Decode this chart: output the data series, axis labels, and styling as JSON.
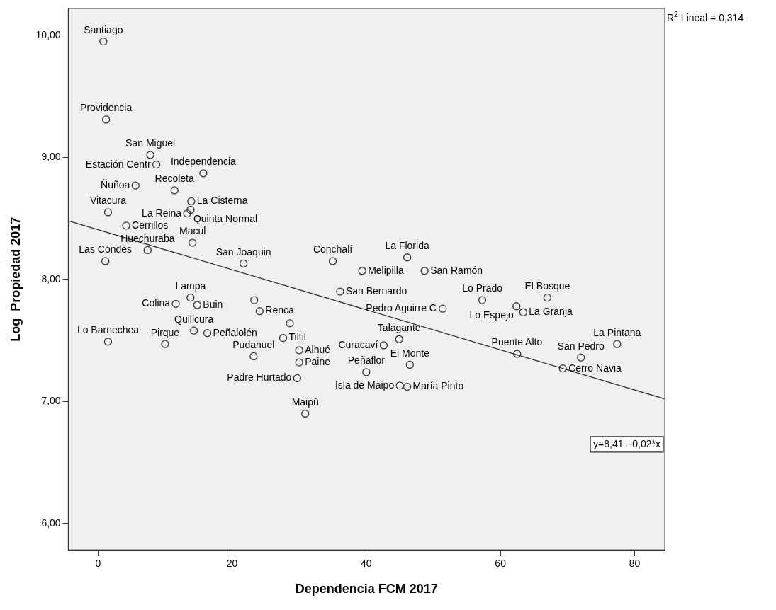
{
  "chart_data": {
    "type": "scatter",
    "xlabel": "Dependencia FCM 2017",
    "ylabel": "Log_Propiedad 2017",
    "xlim": [
      -4.4,
      84.5
    ],
    "ylim": [
      5.78,
      10.22
    ],
    "xticks": [
      0,
      20,
      40,
      60,
      80
    ],
    "yticks": [
      {
        "value": 6,
        "label": "6,00"
      },
      {
        "value": 7,
        "label": "7,00"
      },
      {
        "value": 8,
        "label": "8,00"
      },
      {
        "value": 9,
        "label": "9,00"
      },
      {
        "value": 10,
        "label": "10,00"
      }
    ],
    "grid": false,
    "legend": false,
    "series": [
      {
        "type": "scatter",
        "color": "#333333",
        "marker": "circle",
        "x": [
          0.8,
          1.2,
          7.8,
          8.7,
          5.6,
          11.4,
          15.7,
          13.9,
          13.8,
          13.3,
          1.5,
          4.2,
          14.1,
          7.4,
          1.1,
          21.7,
          35.0,
          39.4,
          36.1,
          46.1,
          48.7,
          57.3,
          51.4,
          44.9,
          42.6,
          30.0,
          30.0,
          29.7,
          30.9,
          40.0,
          46.5,
          45.0,
          46.1,
          67.0,
          62.4,
          63.4,
          77.4,
          62.5,
          72.0,
          69.3,
          11.6,
          13.8,
          14.8,
          1.5,
          10.0,
          14.3,
          16.3,
          23.2,
          24.1,
          27.6,
          23.3,
          28.6
        ],
        "values": [
          9.95,
          9.31,
          9.02,
          8.94,
          8.77,
          8.73,
          8.87,
          8.64,
          8.57,
          8.54,
          8.55,
          8.44,
          8.3,
          8.24,
          8.15,
          8.13,
          8.15,
          8.07,
          7.9,
          8.18,
          8.07,
          7.83,
          7.76,
          7.51,
          7.46,
          7.42,
          7.32,
          7.19,
          6.9,
          7.24,
          7.3,
          7.13,
          7.12,
          7.85,
          7.78,
          7.73,
          7.47,
          7.39,
          7.36,
          7.27,
          7.8,
          7.85,
          7.79,
          7.49,
          7.47,
          7.58,
          7.56,
          7.37,
          7.74,
          7.52,
          7.83,
          7.64
        ]
      },
      {
        "type": "line",
        "color": "#333333",
        "line_style": "solid",
        "x": [
          -4.4,
          84.5
        ],
        "values": [
          8.48,
          7.02
        ]
      }
    ],
    "annotations": [
      {
        "text": "Santiago",
        "x": 0.8,
        "y": 9.95
      },
      {
        "text": "Providencia",
        "x": 1.2,
        "y": 9.31
      },
      {
        "text": "San Miguel",
        "x": 7.8,
        "y": 9.02
      },
      {
        "text": "Estación Centr",
        "x": 8.7,
        "y": 8.94
      },
      {
        "text": "Ñuñoa",
        "x": 5.6,
        "y": 8.77
      },
      {
        "text": "Recoleta",
        "x": 11.4,
        "y": 8.73
      },
      {
        "text": "Independencia",
        "x": 15.7,
        "y": 8.87
      },
      {
        "text": "La Cisterna",
        "x": 13.9,
        "y": 8.64
      },
      {
        "text": "Quinta Normal",
        "x": 13.8,
        "y": 8.57
      },
      {
        "text": "La Reina",
        "x": 13.3,
        "y": 8.54
      },
      {
        "text": "Vitacura",
        "x": 1.5,
        "y": 8.55
      },
      {
        "text": "Cerrillos",
        "x": 4.2,
        "y": 8.44
      },
      {
        "text": "Macul",
        "x": 14.1,
        "y": 8.3
      },
      {
        "text": "Huechuraba",
        "x": 7.4,
        "y": 8.24
      },
      {
        "text": "Las Condes",
        "x": 1.1,
        "y": 8.15
      },
      {
        "text": "San Joaquin",
        "x": 21.7,
        "y": 8.13
      },
      {
        "text": "Conchalí",
        "x": 35.0,
        "y": 8.15
      },
      {
        "text": "Melipilla",
        "x": 39.4,
        "y": 8.07
      },
      {
        "text": "San Bernardo",
        "x": 36.1,
        "y": 7.9
      },
      {
        "text": "La Florida",
        "x": 46.1,
        "y": 8.18
      },
      {
        "text": "San Ramón",
        "x": 48.7,
        "y": 8.07
      },
      {
        "text": "Lo Prado",
        "x": 57.3,
        "y": 7.83
      },
      {
        "text": "Pedro Aguirre C",
        "x": 51.4,
        "y": 7.76
      },
      {
        "text": "Talagante",
        "x": 44.9,
        "y": 7.51
      },
      {
        "text": "Curacaví",
        "x": 42.6,
        "y": 7.46
      },
      {
        "text": "Alhué",
        "x": 30.0,
        "y": 7.42
      },
      {
        "text": "Paine",
        "x": 30.0,
        "y": 7.32
      },
      {
        "text": "Padre Hurtado",
        "x": 29.7,
        "y": 7.19
      },
      {
        "text": "Maipú",
        "x": 30.9,
        "y": 6.9
      },
      {
        "text": "Peñaflor",
        "x": 40.0,
        "y": 7.24
      },
      {
        "text": "El Monte",
        "x": 46.5,
        "y": 7.3
      },
      {
        "text": "Isla de Maipo",
        "x": 45.0,
        "y": 7.13
      },
      {
        "text": "María Pinto",
        "x": 46.1,
        "y": 7.12
      },
      {
        "text": "El Bosque",
        "x": 67.0,
        "y": 7.85
      },
      {
        "text": "Lo Espejo",
        "x": 62.4,
        "y": 7.78
      },
      {
        "text": "La Granja",
        "x": 63.4,
        "y": 7.73
      },
      {
        "text": "La Pintana",
        "x": 77.4,
        "y": 7.47
      },
      {
        "text": "Puente Alto",
        "x": 62.5,
        "y": 7.39
      },
      {
        "text": "San Pedro",
        "x": 72.0,
        "y": 7.36
      },
      {
        "text": "Cerro Navia",
        "x": 69.3,
        "y": 7.27
      },
      {
        "text": "Colina",
        "x": 11.6,
        "y": 7.8
      },
      {
        "text": "Lampa",
        "x": 13.8,
        "y": 7.85
      },
      {
        "text": "Buin",
        "x": 14.8,
        "y": 7.79
      },
      {
        "text": "Lo Barnechea",
        "x": 1.5,
        "y": 7.49
      },
      {
        "text": "Pirque",
        "x": 10.0,
        "y": 7.47
      },
      {
        "text": "Quilicura",
        "x": 14.3,
        "y": 7.58
      },
      {
        "text": "Peñalolén",
        "x": 16.3,
        "y": 7.56
      },
      {
        "text": "Pudahuel",
        "x": 23.2,
        "y": 7.37
      },
      {
        "text": "Renca",
        "x": 24.1,
        "y": 7.74
      },
      {
        "text": "Tiltil",
        "x": 27.6,
        "y": 7.52
      },
      "R$^{2}$ Lineal = 0,314",
      "y=8,41+-0,02*x"
    ]
  }
}
